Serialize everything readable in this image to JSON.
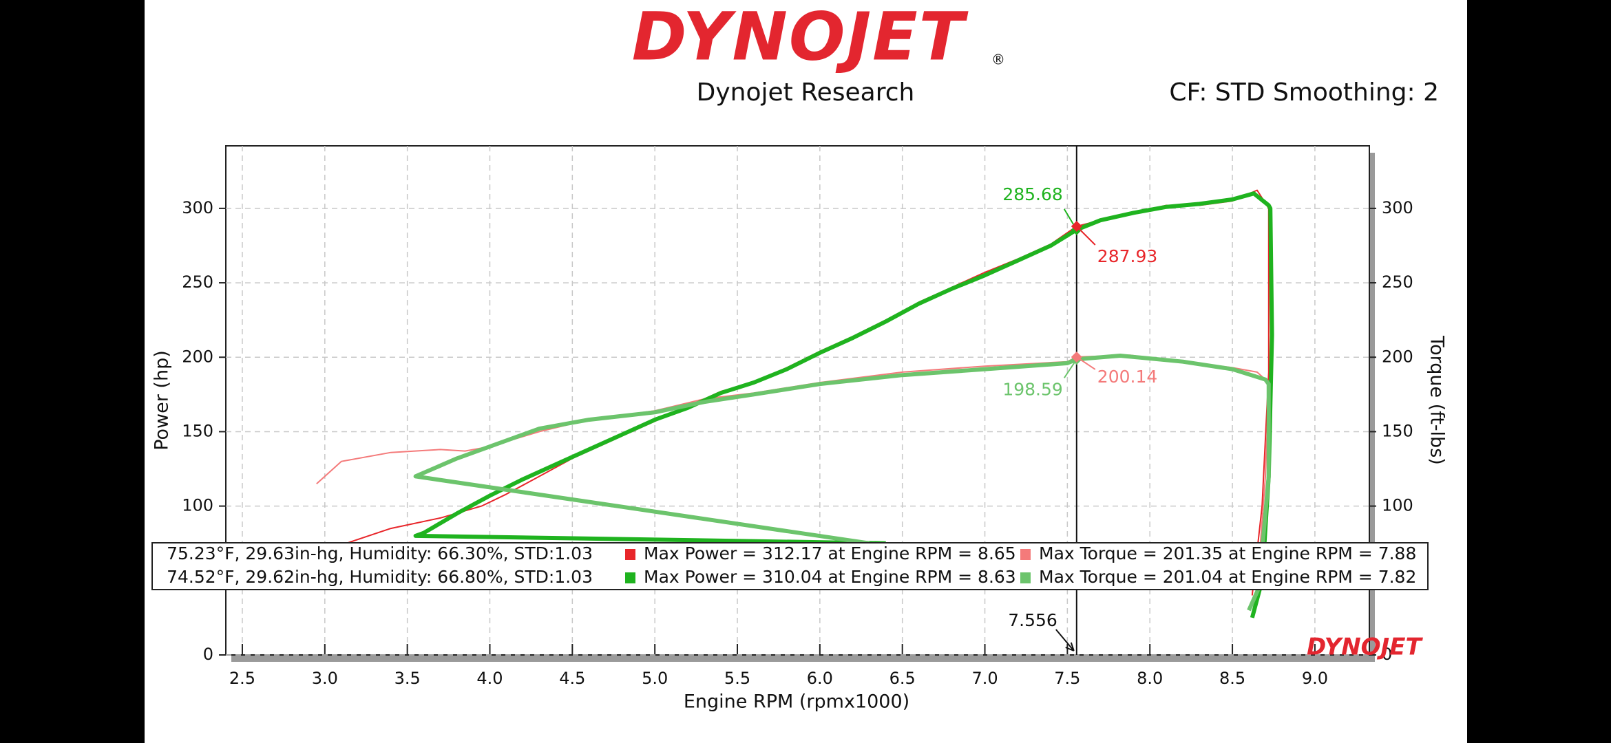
{
  "chart_data": {
    "type": "line",
    "logo": "DYNOJET",
    "logo_mark": "®",
    "title": "Dynojet Research",
    "subtitle": "CF: STD Smoothing: 2",
    "x_label": "Engine RPM (rpmx1000)",
    "y_label": "Power (hp)",
    "y2_label": "Torque (ft-lbs)",
    "xlim": [
      2.4,
      9.33
    ],
    "ylim": [
      0,
      342
    ],
    "y2lim": [
      0,
      342
    ],
    "grid": true,
    "xticks": [
      {
        "value": 2.5,
        "label": "2.5"
      },
      {
        "value": 3,
        "label": "3.0"
      },
      {
        "value": 3.5,
        "label": "3.5"
      },
      {
        "value": 4,
        "label": "4.0"
      },
      {
        "value": 4.5,
        "label": "4.5"
      },
      {
        "value": 5,
        "label": "5.0"
      },
      {
        "value": 5.5,
        "label": "5.5"
      },
      {
        "value": 6,
        "label": "6.0"
      },
      {
        "value": 6.5,
        "label": "6.5"
      },
      {
        "value": 7,
        "label": "7.0"
      },
      {
        "value": 7.5,
        "label": "7.5"
      },
      {
        "value": 8,
        "label": "8.0"
      },
      {
        "value": 8.5,
        "label": "8.5"
      },
      {
        "value": 9,
        "label": "9.0"
      }
    ],
    "yticks": [
      0,
      50,
      100,
      150,
      200,
      250,
      300
    ],
    "y2ticks": [
      0,
      50,
      100,
      150,
      200,
      250,
      300
    ],
    "runs": [
      "75.23°F, 29.63in-hg, Humidity: 66.30%, STD:1.03",
      "74.52°F, 29.62in-hg, Humidity: 66.80%, STD:1.03"
    ],
    "series": [
      {
        "name": "Max Power = 312.17 at Engine RPM = 8.65",
        "color": "#e8262a",
        "x": [
          3.05,
          3.4,
          3.7,
          3.95,
          4.1,
          4.3,
          4.5,
          4.8,
          5.0,
          5.2,
          5.4,
          5.6,
          5.8,
          6.0,
          6.2,
          6.4,
          6.6,
          6.8,
          7.0,
          7.2,
          7.4,
          7.556,
          7.7,
          7.9,
          8.1,
          8.3,
          8.5,
          8.65,
          8.72,
          8.72,
          8.68,
          8.62
        ],
        "values": [
          72,
          85,
          92,
          100,
          108,
          120,
          132,
          147,
          157,
          167,
          177,
          183,
          193,
          204,
          214,
          225,
          237,
          247,
          257,
          266,
          276,
          287.93,
          292,
          297,
          302,
          302,
          305,
          312.17,
          300,
          190,
          100,
          40
        ]
      },
      {
        "name": "Max Power = 310.04 at Engine RPM = 8.63",
        "color": "#1fb31f",
        "x": [
          6.4,
          3.55,
          3.6,
          3.8,
          4.0,
          4.2,
          4.4,
          4.6,
          4.8,
          5.0,
          5.2,
          5.4,
          5.6,
          5.8,
          6.0,
          6.2,
          6.4,
          6.6,
          6.8,
          7.0,
          7.2,
          7.4,
          7.556,
          7.7,
          7.9,
          8.1,
          8.3,
          8.5,
          8.63,
          8.72,
          8.73,
          8.74,
          8.72,
          8.68,
          8.62
        ],
        "values": [
          75,
          80,
          82,
          95,
          107,
          118,
          128,
          138,
          148,
          158,
          166,
          176,
          183,
          192,
          203,
          213,
          224,
          236,
          246,
          255,
          265,
          275,
          285.68,
          292,
          297,
          301,
          303,
          306,
          310.04,
          302,
          300,
          215,
          120,
          50,
          25
        ]
      },
      {
        "name": "Max Torque = 201.35 at Engine RPM = 7.88",
        "color": "#f47a7a",
        "axis": "y2",
        "x": [
          2.95,
          3.1,
          3.4,
          3.7,
          3.85,
          4.0,
          4.3,
          4.6,
          5.0,
          5.3,
          5.6,
          6.0,
          6.5,
          7.0,
          7.5,
          7.556,
          7.88,
          8.2,
          8.5,
          8.65,
          8.7,
          8.72,
          8.7,
          8.66
        ],
        "values": [
          115,
          130,
          136,
          138,
          137,
          140,
          150,
          158,
          164,
          172,
          176,
          183,
          190,
          194,
          197,
          200.14,
          201.35,
          197,
          193,
          190,
          185,
          180,
          120,
          60
        ]
      },
      {
        "name": "Max Torque = 201.04 at Engine RPM = 7.82",
        "color": "#6cc46c",
        "axis": "y2",
        "x": [
          6.3,
          3.55,
          3.8,
          4.0,
          4.3,
          4.6,
          5.0,
          5.3,
          5.6,
          6.0,
          6.5,
          7.0,
          7.5,
          7.556,
          7.82,
          8.2,
          8.5,
          8.7,
          8.72,
          8.72,
          8.66,
          8.6
        ],
        "values": [
          75,
          120,
          132,
          140,
          152,
          158,
          163,
          170,
          175,
          182,
          188,
          192,
          196,
          198.59,
          201.04,
          197,
          192,
          185,
          182,
          120,
          45,
          30
        ]
      }
    ],
    "cursor": 7.556,
    "annotations": [
      {
        "value": 285.68,
        "color": "#1fb31f"
      },
      {
        "value": 287.93,
        "color": "#e8262a"
      },
      {
        "value": 198.59,
        "color": "#6cc46c"
      },
      {
        "value": 200.14,
        "color": "#f47a7a"
      }
    ]
  }
}
